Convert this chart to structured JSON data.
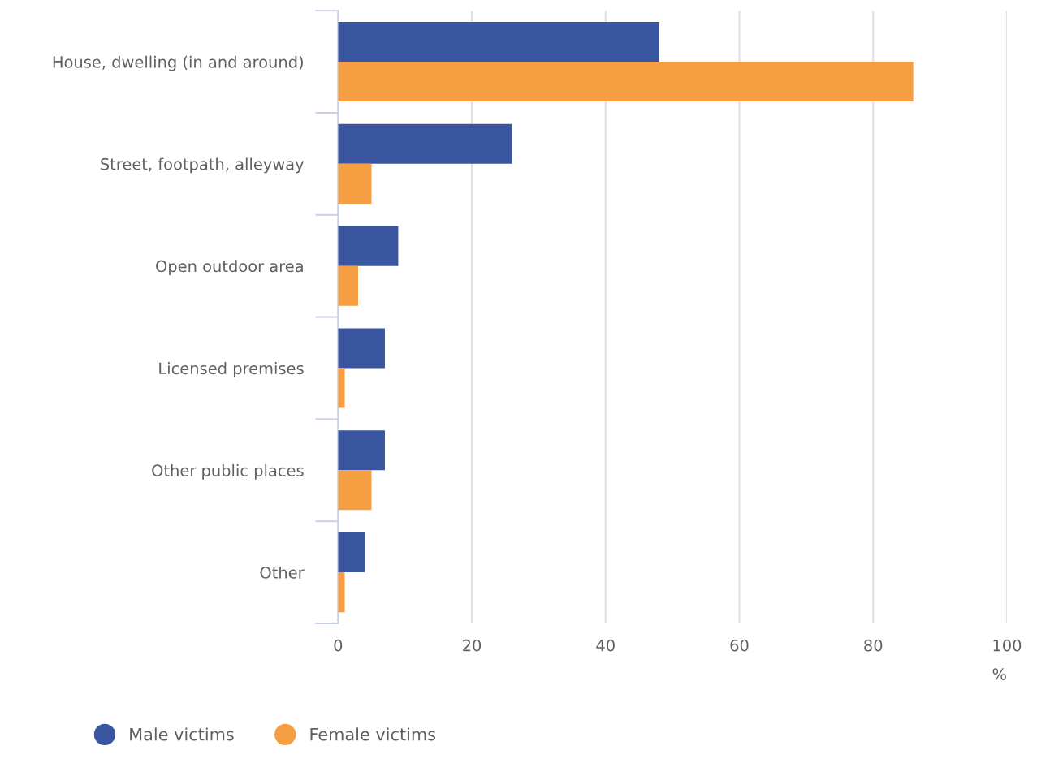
{
  "chart_data": {
    "type": "bar",
    "orientation": "horizontal",
    "xlabel": "%",
    "categories": [
      "House, dwelling (in and around)",
      "Street, footpath, alleyway",
      "Open outdoor area",
      "Licensed premises",
      "Other public places",
      "Other"
    ],
    "series": [
      {
        "name": "Male victims",
        "color": "#3b56a0",
        "values": [
          48,
          26,
          9,
          7,
          7,
          4
        ]
      },
      {
        "name": "Female victims",
        "color": "#f59e42",
        "values": [
          86,
          5,
          3,
          1,
          5,
          1
        ]
      }
    ],
    "xlim": [
      0,
      100
    ],
    "xticks": [
      0,
      20,
      40,
      60,
      80,
      100
    ],
    "grid": "x",
    "legend": "bottom left",
    "marker": "circle"
  }
}
